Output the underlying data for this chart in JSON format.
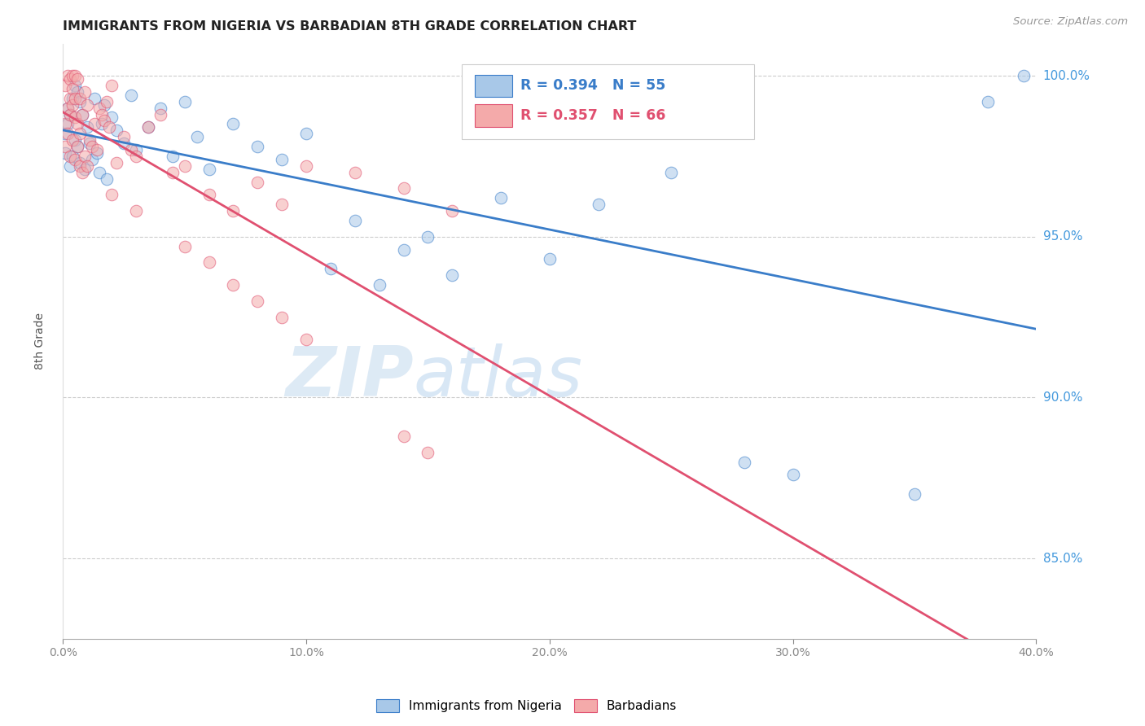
{
  "title": "IMMIGRANTS FROM NIGERIA VS BARBADIAN 8TH GRADE CORRELATION CHART",
  "source": "Source: ZipAtlas.com",
  "ylabel": "8th Grade",
  "ylabel_right_labels": [
    "100.0%",
    "95.0%",
    "90.0%",
    "85.0%"
  ],
  "ylabel_right_values": [
    1.0,
    0.95,
    0.9,
    0.85
  ],
  "legend_blue_label": "Immigrants from Nigeria",
  "legend_pink_label": "Barbadians",
  "legend_blue_r": "R = 0.394",
  "legend_blue_n": "N = 55",
  "legend_pink_r": "R = 0.357",
  "legend_pink_n": "N = 66",
  "blue_color": "#a8c8e8",
  "pink_color": "#f4aaaa",
  "trendline_blue": "#3a7dc9",
  "trendline_pink": "#e05070",
  "blue_x": [
    0.001,
    0.001,
    0.002,
    0.002,
    0.003,
    0.003,
    0.004,
    0.004,
    0.005,
    0.005,
    0.006,
    0.006,
    0.007,
    0.007,
    0.008,
    0.009,
    0.01,
    0.011,
    0.012,
    0.013,
    0.014,
    0.015,
    0.016,
    0.017,
    0.018,
    0.02,
    0.022,
    0.025,
    0.028,
    0.03,
    0.035,
    0.04,
    0.045,
    0.05,
    0.055,
    0.06,
    0.07,
    0.08,
    0.09,
    0.1,
    0.11,
    0.12,
    0.13,
    0.14,
    0.15,
    0.16,
    0.18,
    0.2,
    0.22,
    0.25,
    0.28,
    0.3,
    0.35,
    0.38,
    0.395
  ],
  "blue_y": [
    0.976,
    0.982,
    0.985,
    0.99,
    0.972,
    0.988,
    0.975,
    0.993,
    0.98,
    0.997,
    0.978,
    0.995,
    0.973,
    0.992,
    0.988,
    0.971,
    0.984,
    0.979,
    0.974,
    0.993,
    0.976,
    0.97,
    0.985,
    0.991,
    0.968,
    0.987,
    0.983,
    0.979,
    0.994,
    0.977,
    0.984,
    0.99,
    0.975,
    0.992,
    0.981,
    0.971,
    0.985,
    0.978,
    0.974,
    0.982,
    0.94,
    0.955,
    0.935,
    0.946,
    0.95,
    0.938,
    0.962,
    0.943,
    0.96,
    0.97,
    0.88,
    0.876,
    0.87,
    0.992,
    1.0
  ],
  "pink_x": [
    0.001,
    0.001,
    0.001,
    0.002,
    0.002,
    0.002,
    0.003,
    0.003,
    0.003,
    0.003,
    0.004,
    0.004,
    0.004,
    0.004,
    0.005,
    0.005,
    0.005,
    0.005,
    0.006,
    0.006,
    0.006,
    0.007,
    0.007,
    0.007,
    0.008,
    0.008,
    0.009,
    0.009,
    0.01,
    0.01,
    0.011,
    0.012,
    0.013,
    0.014,
    0.015,
    0.016,
    0.017,
    0.018,
    0.019,
    0.02,
    0.022,
    0.025,
    0.028,
    0.03,
    0.035,
    0.04,
    0.045,
    0.05,
    0.06,
    0.07,
    0.08,
    0.09,
    0.1,
    0.12,
    0.14,
    0.16,
    0.02,
    0.03,
    0.05,
    0.06,
    0.07,
    0.08,
    0.09,
    0.1,
    0.14,
    0.15
  ],
  "pink_y": [
    0.978,
    0.985,
    0.997,
    0.982,
    0.99,
    1.0,
    0.975,
    0.988,
    0.993,
    0.999,
    0.98,
    0.991,
    0.996,
    1.0,
    0.974,
    0.987,
    0.993,
    1.0,
    0.978,
    0.985,
    0.999,
    0.972,
    0.982,
    0.993,
    0.97,
    0.988,
    0.975,
    0.995,
    0.972,
    0.991,
    0.98,
    0.978,
    0.985,
    0.977,
    0.99,
    0.988,
    0.986,
    0.992,
    0.984,
    0.997,
    0.973,
    0.981,
    0.977,
    0.975,
    0.984,
    0.988,
    0.97,
    0.972,
    0.963,
    0.958,
    0.967,
    0.96,
    0.972,
    0.97,
    0.965,
    0.958,
    0.963,
    0.958,
    0.947,
    0.942,
    0.935,
    0.93,
    0.925,
    0.918,
    0.888,
    0.883
  ],
  "xlim": [
    0.0,
    0.4
  ],
  "ylim": [
    0.825,
    1.01
  ],
  "watermark_zip": "ZIP",
  "watermark_atlas": "atlas",
  "background_color": "#ffffff"
}
